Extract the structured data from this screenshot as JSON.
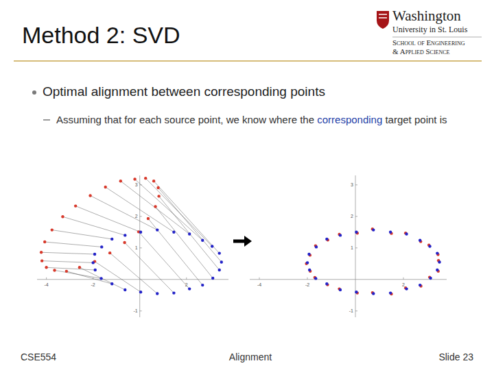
{
  "slide": {
    "title": "Method 2: SVD",
    "logo": [
      "Washington",
      "University in St. Louis",
      "School of Engineering",
      "& Applied Science"
    ],
    "bullet": "Optimal alignment between corresponding points",
    "sub_bullet": {
      "before": "Assuming that for each source point, we know where the ",
      "highlight": "corresponding",
      "after": " target point is"
    },
    "footer": {
      "left": "CSE554",
      "center": "Alignment",
      "right": "Slide 23"
    }
  },
  "chart_data": [
    {
      "type": "scatter",
      "xlim": [
        -4.4,
        3.8
      ],
      "ylim": [
        -1.2,
        3.3
      ],
      "xticks": [
        -4,
        -2,
        2
      ],
      "yticks": [
        -1,
        1,
        2,
        3
      ],
      "line_style": "solid",
      "series": [
        {
          "color": "#d8392b",
          "marker": "circle",
          "x": [
            0.79,
            0.6,
            0.25,
            -0.21,
            -0.82,
            -1.47,
            -2.12,
            -2.75,
            -3.3,
            -3.76,
            -4.07,
            -4.22,
            -4.19,
            -4.0,
            -3.65,
            -3.14,
            -2.58,
            -1.93,
            -1.28,
            -0.65,
            -0.05,
            0.36,
            0.67,
            0.82
          ],
          "values": [
            2.91,
            3.12,
            3.21,
            3.18,
            3.12,
            2.93,
            2.66,
            2.33,
            1.99,
            1.57,
            1.19,
            0.86,
            0.59,
            0.38,
            0.29,
            0.26,
            0.38,
            0.57,
            0.84,
            1.17,
            1.51,
            1.93,
            2.31,
            2.64
          ]
        },
        {
          "color": "#2323c8",
          "marker": "circle",
          "x": [
            3.5,
            3.41,
            3.1,
            2.69,
            2.13,
            1.46,
            0.75,
            0.04,
            -0.63,
            -1.19,
            -1.63,
            -1.93,
            -2.0,
            -1.91,
            -1.65,
            -1.19,
            -0.63,
            0.04,
            0.75,
            1.46,
            2.13,
            2.69,
            3.13,
            3.41
          ],
          "values": [
            0.55,
            0.83,
            1.05,
            1.24,
            1.44,
            1.5,
            1.57,
            1.5,
            1.4,
            1.28,
            1.03,
            0.8,
            0.53,
            0.3,
            0.03,
            -0.14,
            -0.33,
            -0.4,
            -0.45,
            -0.43,
            -0.3,
            -0.18,
            0.04,
            0.3
          ]
        }
      ]
    },
    {
      "type": "scatter",
      "xlim": [
        -4.4,
        3.8
      ],
      "ylim": [
        -1.2,
        3.3
      ],
      "xticks": [
        -4,
        -2,
        2
      ],
      "yticks": [
        -1,
        1,
        2,
        3
      ],
      "series": [
        {
          "color": "#d8392b",
          "marker": "circle",
          "x": [
            3.46,
            3.44,
            3.06,
            2.72,
            2.09,
            1.5,
            0.71,
            0.08,
            -0.67,
            -1.15,
            -1.66,
            -1.89,
            -2.04,
            -1.88,
            -1.69,
            -1.16,
            -0.67,
            0.08,
            0.71,
            1.5,
            2.09,
            2.73,
            3.09,
            3.45
          ],
          "values": [
            0.6,
            0.79,
            1.09,
            1.2,
            1.47,
            1.46,
            1.6,
            1.47,
            1.43,
            1.25,
            1.07,
            0.77,
            0.5,
            0.26,
            0.06,
            -0.17,
            -0.3,
            -0.43,
            -0.42,
            -0.46,
            -0.27,
            -0.21,
            0.07,
            0.26
          ]
        },
        {
          "color": "#2323c8",
          "marker": "circle",
          "x": [
            3.5,
            3.41,
            3.1,
            2.69,
            2.13,
            1.46,
            0.75,
            0.04,
            -0.63,
            -1.19,
            -1.63,
            -1.93,
            -2.0,
            -1.91,
            -1.65,
            -1.19,
            -0.63,
            0.04,
            0.75,
            1.46,
            2.13,
            2.69,
            3.13,
            3.41
          ],
          "values": [
            0.55,
            0.83,
            1.05,
            1.24,
            1.44,
            1.5,
            1.57,
            1.5,
            1.4,
            1.28,
            1.03,
            0.8,
            0.53,
            0.3,
            0.03,
            -0.14,
            -0.33,
            -0.4,
            -0.45,
            -0.43,
            -0.3,
            -0.18,
            0.04,
            0.3
          ]
        }
      ]
    }
  ]
}
